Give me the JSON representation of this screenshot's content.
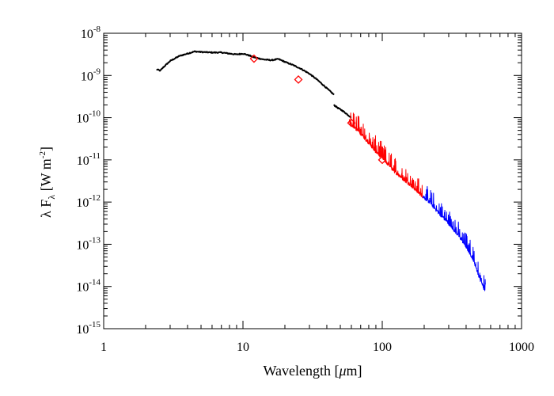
{
  "chart_data": {
    "type": "line",
    "title": "",
    "xlabel": "Wavelength [μm]",
    "ylabel": "λ F_λ  [W m^-2]",
    "xscale": "log",
    "yscale": "log",
    "xlim": [
      1,
      1000
    ],
    "ylim": [
      1e-15,
      1e-08
    ],
    "grid": false,
    "legend": "none",
    "x_ticks": [
      {
        "value": 1,
        "label": "1"
      },
      {
        "value": 10,
        "label": "10"
      },
      {
        "value": 100,
        "label": "100"
      },
      {
        "value": 1000,
        "label": "1000"
      }
    ],
    "y_ticks": [
      {
        "value": 1e-08,
        "base": "10",
        "exp": "-8"
      },
      {
        "value": 1e-09,
        "base": "10",
        "exp": "-9"
      },
      {
        "value": 1e-10,
        "base": "10",
        "exp": "-10"
      },
      {
        "value": 1e-11,
        "base": "10",
        "exp": "-11"
      },
      {
        "value": 1e-12,
        "base": "10",
        "exp": "-12"
      },
      {
        "value": 1e-13,
        "base": "10",
        "exp": "-13"
      },
      {
        "value": 1e-14,
        "base": "10",
        "exp": "-14"
      },
      {
        "value": 1e-15,
        "base": "10",
        "exp": "-15"
      }
    ],
    "series": [
      {
        "color": "#000000",
        "style": "line",
        "segments": [
          [
            [
              2.4,
              1.4e-09
            ],
            [
              2.55,
              1.3e-09
            ],
            [
              2.7,
              1.6e-09
            ],
            [
              3.0,
              2.2e-09
            ],
            [
              3.5,
              2.9e-09
            ],
            [
              4.0,
              3.3e-09
            ],
            [
              4.5,
              3.7e-09
            ],
            [
              5.0,
              3.6e-09
            ],
            [
              6.0,
              3.5e-09
            ],
            [
              7.0,
              3.5e-09
            ],
            [
              8.0,
              3.3e-09
            ],
            [
              9.0,
              3.15e-09
            ],
            [
              10.0,
              3.3e-09
            ],
            [
              11.0,
              3e-09
            ],
            [
              12.0,
              2.7e-09
            ],
            [
              14.0,
              2.4e-09
            ],
            [
              16.0,
              2.3e-09
            ],
            [
              18.0,
              2.45e-09
            ],
            [
              20.0,
              2.1e-09
            ],
            [
              23.0,
              1.75e-09
            ],
            [
              26.0,
              1.45e-09
            ],
            [
              30.0,
              1.1e-09
            ],
            [
              34.0,
              8e-10
            ],
            [
              38.0,
              5.8e-10
            ],
            [
              42.0,
              4.3e-10
            ],
            [
              45.0,
              3.5e-10
            ]
          ],
          [
            [
              45.0,
              2e-10
            ],
            [
              48.0,
              1.7e-10
            ],
            [
              52.0,
              1.45e-10
            ],
            [
              56.0,
              1.2e-10
            ],
            [
              60.0,
              1e-10
            ]
          ]
        ]
      },
      {
        "color": "#ff0000",
        "style": "noisy-line",
        "segments": [
          [
            [
              58,
              8e-11
            ],
            [
              65,
              5.5e-11
            ],
            [
              70,
              4.3e-11
            ],
            [
              80,
              2.6e-11
            ],
            [
              90,
              1.6e-11
            ],
            [
              100,
              1.15e-11
            ],
            [
              110,
              8e-12
            ],
            [
              120,
              5.8e-12
            ],
            [
              140,
              3.7e-12
            ],
            [
              160,
              2.6e-12
            ],
            [
              180,
              1.8e-12
            ],
            [
              195,
              1.4e-12
            ]
          ]
        ]
      },
      {
        "color": "#0000ff",
        "style": "noisy-line",
        "segments": [
          [
            [
              195,
              1.4e-12
            ],
            [
              220,
              1e-12
            ],
            [
              250,
              6e-13
            ],
            [
              300,
              3.2e-13
            ],
            [
              350,
              1.7e-13
            ],
            [
              400,
              9e-14
            ],
            [
              450,
              4.5e-14
            ],
            [
              500,
              1.6e-14
            ],
            [
              530,
              1e-14
            ],
            [
              550,
              8e-15
            ]
          ]
        ]
      }
    ],
    "photometry_points": {
      "color": "#ff0000",
      "marker": "diamond",
      "points": [
        [
          12,
          2.5e-09
        ],
        [
          25,
          8e-10
        ],
        [
          60,
          7.5e-11
        ],
        [
          100,
          1e-11
        ]
      ]
    }
  }
}
